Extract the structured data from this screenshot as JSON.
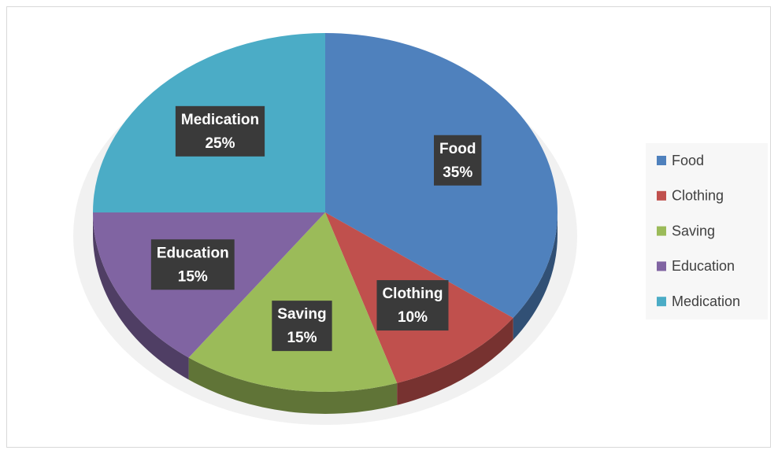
{
  "chart_data": {
    "type": "pie",
    "categories": [
      "Food",
      "Clothing",
      "Saving",
      "Education",
      "Medication"
    ],
    "values": [
      35,
      10,
      15,
      15,
      25
    ],
    "value_labels": [
      "35%",
      "10%",
      "15%",
      "15%",
      "25%"
    ],
    "colors": [
      "#4f81bd",
      "#c0504d",
      "#9bbb59",
      "#8064a2",
      "#4bacc6"
    ],
    "legend": "right"
  }
}
